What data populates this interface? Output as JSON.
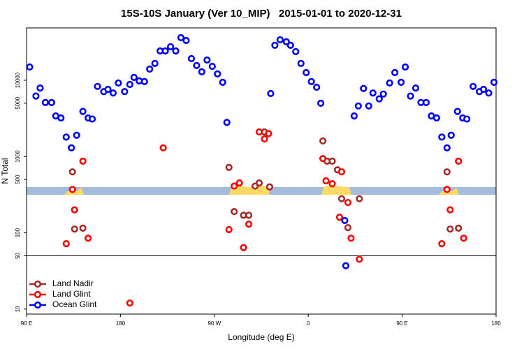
{
  "chart_data": {
    "type": "scatter",
    "title": "15S-10S January (Ver 10_MIP)   2015-01-01 to 2020-12-31",
    "xlabel": "Longitude (deg E)",
    "ylabel": "N Total",
    "xlim": [
      90,
      540
    ],
    "xticks": [
      {
        "value": 90,
        "label": "90 E"
      },
      {
        "value": 180,
        "label": "180"
      },
      {
        "value": 270,
        "label": "90 W"
      },
      {
        "value": 360,
        "label": "0"
      },
      {
        "value": 450,
        "label": "90 E"
      },
      {
        "value": 540,
        "label": "180"
      }
    ],
    "ylim": [
      8.6,
      48500
    ],
    "ylog": true,
    "yticks": [
      10,
      50,
      100,
      500,
      1000,
      5000,
      10000
    ],
    "hline": 50,
    "legend": "lower left",
    "series": [
      {
        "name": "Land Nadir",
        "color": "#a52a2a",
        "x": [
          134,
          136,
          144,
          284,
          289,
          298,
          303,
          309,
          313,
          318,
          323,
          374,
          378,
          383,
          388,
          392,
          398,
          409,
          493,
          496,
          504
        ],
        "values": [
          630,
          112,
          115,
          720,
          190,
          170,
          170,
          410,
          450,
          2100,
          400,
          1600,
          870,
          870,
          670,
          280,
          117,
          280,
          630,
          112,
          115
        ]
      },
      {
        "name": "Land Glint",
        "color": "#ff0000",
        "x": [
          128,
          134,
          136,
          144,
          149,
          221,
          189,
          284,
          289,
          294,
          298,
          303,
          313,
          318,
          322,
          374,
          377,
          383,
          390,
          392,
          398,
          401,
          409,
          488,
          493,
          496,
          504,
          509
        ],
        "values": [
          72,
          370,
          200,
          870,
          85,
          1300,
          12,
          110,
          410,
          450,
          64,
          130,
          2100,
          1700,
          2000,
          940,
          480,
          440,
          160,
          630,
          250,
          85,
          45,
          72,
          370,
          200,
          870,
          85
        ]
      },
      {
        "name": "Ocean Glint",
        "color": "#0000ff",
        "x": [
          93,
          99,
          103,
          108,
          114,
          118,
          123,
          128,
          133,
          138,
          144,
          149,
          153,
          158,
          164,
          168,
          173,
          178,
          184,
          189,
          193,
          198,
          203,
          208,
          213,
          218,
          223,
          228,
          233,
          238,
          243,
          248,
          253,
          258,
          263,
          268,
          273,
          278,
          282,
          324,
          328,
          333,
          339,
          343,
          348,
          353,
          358,
          363,
          368,
          372,
          396,
          395,
          404,
          408,
          413,
          418,
          422,
          428,
          432,
          438,
          443,
          449,
          453,
          458,
          463,
          468,
          473,
          478,
          483,
          488,
          493,
          497,
          503,
          508,
          512,
          518,
          524,
          528,
          533,
          538
        ],
        "values": [
          14900,
          6200,
          7900,
          5100,
          5100,
          3400,
          3200,
          1800,
          1300,
          1900,
          3900,
          3200,
          3100,
          8300,
          7100,
          7600,
          6800,
          9200,
          7100,
          8800,
          10900,
          9800,
          9600,
          14000,
          16600,
          24200,
          24200,
          27500,
          24200,
          36100,
          33200,
          19200,
          15600,
          12900,
          18400,
          15200,
          12100,
          9400,
          2800,
          6700,
          28700,
          33900,
          31900,
          28700,
          23700,
          16600,
          12600,
          9600,
          8100,
          5000,
          37,
          145,
          3400,
          4600,
          7800,
          4600,
          6800,
          5700,
          6600,
          9200,
          12600,
          9400,
          14900,
          6200,
          7900,
          5100,
          5100,
          3400,
          3200,
          1800,
          1300,
          1900,
          3900,
          3200,
          3100,
          8300,
          7100,
          7600,
          6800,
          9400
        ]
      }
    ]
  }
}
